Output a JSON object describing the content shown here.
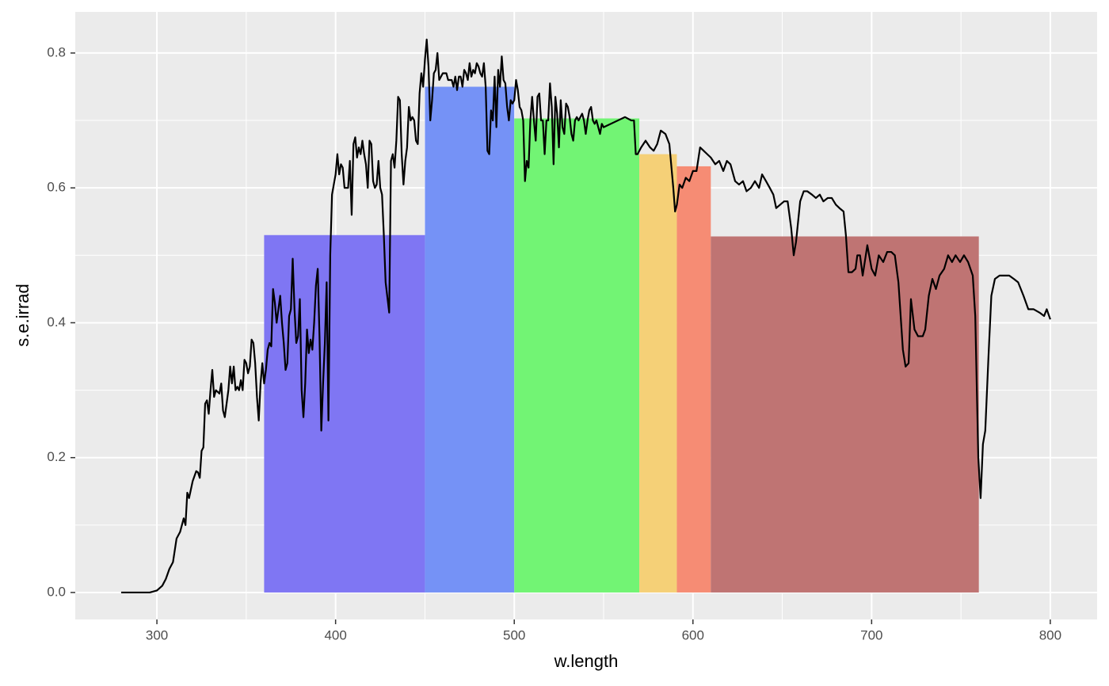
{
  "chart_data": {
    "type": "line",
    "xlabel": "w.length",
    "ylabel": "s.e.irrad",
    "xlim": [
      254.3,
      826.2
    ],
    "ylim": [
      -0.04,
      0.861
    ],
    "xticks": [
      300,
      400,
      500,
      600,
      700,
      800
    ],
    "yticks": [
      {
        "value": 0,
        "label": "0.0"
      },
      0.2,
      0.4,
      0.6,
      0.8
    ],
    "grid": true,
    "color": "#000000",
    "bands": {
      "xmin": [
        360,
        450,
        500,
        570,
        591,
        610
      ],
      "xmax": [
        450,
        500,
        570,
        591,
        610,
        760
      ],
      "values": [
        0.53,
        0.75,
        0.703,
        0.65,
        0.632,
        0.528
      ],
      "colors": [
        "#7f76f3",
        "#7592f6",
        "#72f474",
        "#f5d077",
        "#f68c74",
        "#bf7473"
      ]
    },
    "x": [
      280,
      290,
      296,
      300,
      303,
      305,
      307,
      309,
      311,
      313,
      315,
      316,
      317,
      318,
      320,
      322,
      323,
      324,
      325,
      326,
      327,
      328,
      329,
      330,
      331,
      332,
      333,
      335,
      336,
      337,
      338,
      340,
      341,
      342,
      343,
      344,
      345,
      346,
      347,
      348,
      349,
      350,
      351,
      352,
      353,
      354,
      355,
      356,
      357,
      358,
      359,
      360,
      361,
      362,
      363,
      364,
      365,
      366,
      367,
      368,
      369,
      370,
      371,
      372,
      373,
      374,
      375,
      376,
      377,
      378,
      379,
      380,
      381,
      382,
      383,
      384,
      385,
      386,
      387,
      388,
      389,
      390,
      391,
      392,
      393,
      394,
      395,
      396,
      397,
      398,
      400,
      401,
      402,
      403,
      404,
      405,
      407,
      408,
      409,
      410,
      411,
      412,
      413,
      414,
      415,
      416,
      417,
      418,
      419,
      420,
      421,
      422,
      423,
      424,
      425,
      426,
      427,
      428,
      430,
      431,
      432,
      433,
      434,
      435,
      436,
      437,
      438,
      439,
      440,
      441,
      442,
      443,
      444,
      445,
      446,
      447,
      448,
      449,
      450,
      451,
      452,
      453,
      454,
      455,
      456,
      457,
      458,
      460,
      462,
      463,
      465,
      466,
      467,
      468,
      469,
      470,
      471,
      472,
      473,
      474,
      475,
      476,
      477,
      478,
      479,
      480,
      481,
      482,
      483,
      484,
      485,
      486,
      487,
      488,
      489,
      490,
      491,
      492,
      493,
      494,
      495,
      496,
      497,
      498,
      499,
      500,
      501,
      502,
      503,
      504,
      505,
      506,
      507,
      508,
      509,
      510,
      511,
      512,
      513,
      514,
      515,
      516,
      517,
      518,
      519,
      520,
      521,
      522,
      523,
      524,
      525,
      526,
      527,
      528,
      529,
      530,
      531,
      532,
      533,
      534,
      535,
      536,
      537,
      538,
      539,
      540,
      541,
      542,
      543,
      544,
      545,
      546,
      547,
      548,
      549,
      550,
      558,
      562,
      565.5,
      567,
      568,
      569,
      571,
      573.5,
      576,
      578,
      580,
      582,
      584.6,
      586.8,
      589,
      590,
      591,
      592.5,
      594,
      596,
      598,
      600,
      602,
      604,
      606,
      608,
      610,
      612.5,
      614.7,
      617,
      619,
      621,
      623.6,
      625.8,
      628,
      630,
      632.4,
      634.7,
      637,
      638.7,
      640.9,
      643,
      645,
      646.6,
      648.8,
      651,
      653,
      655,
      656.4,
      657.7,
      660,
      662,
      664,
      666.6,
      668.8,
      671,
      673,
      675.4,
      677.7,
      680,
      682,
      684.3,
      685.6,
      687,
      689,
      691,
      692,
      693.5,
      695,
      697.6,
      700,
      702,
      704,
      706.5,
      708.7,
      711,
      713,
      715,
      717.5,
      719,
      720.7,
      722,
      724,
      726,
      728.6,
      730,
      732,
      734,
      736,
      738,
      740.6,
      742.8,
      745,
      747,
      749.5,
      751.7,
      754,
      756.6,
      758,
      759.7,
      761,
      762.3,
      763.6,
      765.4,
      767,
      769,
      771.6,
      774,
      777,
      779.6,
      782,
      785,
      787.7,
      790.7,
      794,
      796.5,
      798,
      800
    ],
    "values": [
      0,
      0,
      0,
      0.003,
      0.01,
      0.02,
      0.035,
      0.045,
      0.08,
      0.09,
      0.11,
      0.1,
      0.148,
      0.14,
      0.165,
      0.18,
      0.178,
      0.17,
      0.21,
      0.215,
      0.28,
      0.285,
      0.265,
      0.3,
      0.33,
      0.29,
      0.3,
      0.295,
      0.31,
      0.27,
      0.26,
      0.3,
      0.335,
      0.31,
      0.335,
      0.3,
      0.305,
      0.3,
      0.315,
      0.3,
      0.345,
      0.34,
      0.325,
      0.335,
      0.375,
      0.37,
      0.34,
      0.29,
      0.255,
      0.31,
      0.34,
      0.31,
      0.33,
      0.36,
      0.37,
      0.365,
      0.45,
      0.43,
      0.4,
      0.42,
      0.44,
      0.4,
      0.37,
      0.33,
      0.34,
      0.41,
      0.42,
      0.495,
      0.42,
      0.37,
      0.38,
      0.435,
      0.3,
      0.26,
      0.31,
      0.39,
      0.355,
      0.375,
      0.36,
      0.4,
      0.455,
      0.48,
      0.38,
      0.24,
      0.31,
      0.37,
      0.46,
      0.255,
      0.5,
      0.59,
      0.62,
      0.65,
      0.62,
      0.635,
      0.63,
      0.6,
      0.6,
      0.64,
      0.56,
      0.665,
      0.675,
      0.645,
      0.66,
      0.65,
      0.67,
      0.65,
      0.635,
      0.6,
      0.67,
      0.665,
      0.61,
      0.6,
      0.605,
      0.64,
      0.6,
      0.59,
      0.53,
      0.46,
      0.415,
      0.64,
      0.65,
      0.63,
      0.67,
      0.735,
      0.73,
      0.65,
      0.605,
      0.64,
      0.66,
      0.72,
      0.7,
      0.705,
      0.7,
      0.67,
      0.665,
      0.74,
      0.77,
      0.75,
      0.79,
      0.82,
      0.78,
      0.7,
      0.73,
      0.77,
      0.775,
      0.8,
      0.76,
      0.77,
      0.77,
      0.76,
      0.76,
      0.75,
      0.765,
      0.745,
      0.765,
      0.765,
      0.75,
      0.775,
      0.77,
      0.76,
      0.785,
      0.765,
      0.775,
      0.77,
      0.785,
      0.78,
      0.77,
      0.765,
      0.785,
      0.75,
      0.655,
      0.65,
      0.715,
      0.7,
      0.765,
      0.69,
      0.775,
      0.75,
      0.795,
      0.76,
      0.755,
      0.72,
      0.7,
      0.73,
      0.725,
      0.73,
      0.76,
      0.745,
      0.72,
      0.715,
      0.7,
      0.61,
      0.64,
      0.63,
      0.7,
      0.735,
      0.7,
      0.67,
      0.735,
      0.74,
      0.7,
      0.7,
      0.65,
      0.7,
      0.7,
      0.755,
      0.72,
      0.635,
      0.735,
      0.71,
      0.66,
      0.73,
      0.69,
      0.68,
      0.725,
      0.72,
      0.705,
      0.68,
      0.67,
      0.7,
      0.705,
      0.7,
      0.705,
      0.71,
      0.7,
      0.68,
      0.7,
      0.715,
      0.72,
      0.7,
      0.695,
      0.7,
      0.69,
      0.68,
      0.695,
      0.69,
      0.7,
      0.705,
      0.7,
      0.7,
      0.65,
      0.65,
      0.66,
      0.67,
      0.66,
      0.655,
      0.665,
      0.685,
      0.68,
      0.665,
      0.6,
      0.565,
      0.575,
      0.605,
      0.6,
      0.615,
      0.61,
      0.625,
      0.625,
      0.66,
      0.655,
      0.65,
      0.645,
      0.635,
      0.64,
      0.625,
      0.64,
      0.635,
      0.61,
      0.605,
      0.61,
      0.595,
      0.6,
      0.61,
      0.6,
      0.62,
      0.61,
      0.6,
      0.59,
      0.57,
      0.575,
      0.58,
      0.58,
      0.54,
      0.5,
      0.52,
      0.58,
      0.595,
      0.595,
      0.59,
      0.585,
      0.59,
      0.58,
      0.585,
      0.585,
      0.575,
      0.57,
      0.565,
      0.53,
      0.475,
      0.475,
      0.48,
      0.5,
      0.5,
      0.47,
      0.515,
      0.48,
      0.47,
      0.5,
      0.49,
      0.505,
      0.505,
      0.5,
      0.46,
      0.36,
      0.335,
      0.34,
      0.435,
      0.39,
      0.38,
      0.38,
      0.39,
      0.44,
      0.465,
      0.45,
      0.47,
      0.48,
      0.5,
      0.49,
      0.5,
      0.49,
      0.5,
      0.49,
      0.47,
      0.41,
      0.2,
      0.14,
      0.22,
      0.24,
      0.35,
      0.44,
      0.465,
      0.47,
      0.47,
      0.47,
      0.465,
      0.46,
      0.44,
      0.42,
      0.42,
      0.415,
      0.41,
      0.42,
      0.405
    ]
  }
}
